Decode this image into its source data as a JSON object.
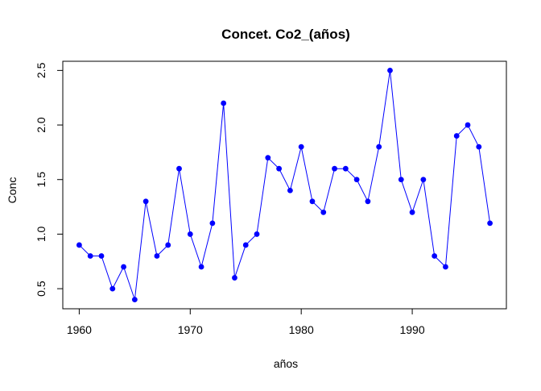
{
  "chart_data": {
    "type": "line",
    "title": "Concet. Co2_(años)",
    "xlabel": "años",
    "ylabel": "Conc",
    "x": [
      1960,
      1961,
      1962,
      1963,
      1964,
      1965,
      1966,
      1967,
      1968,
      1969,
      1970,
      1971,
      1972,
      1973,
      1974,
      1975,
      1976,
      1977,
      1978,
      1979,
      1980,
      1981,
      1982,
      1983,
      1984,
      1985,
      1986,
      1987,
      1988,
      1989,
      1990,
      1991,
      1992,
      1993,
      1994,
      1995,
      1996,
      1997
    ],
    "series": [
      {
        "values": [
          0.9,
          0.8,
          0.8,
          0.5,
          0.7,
          0.4,
          1.3,
          0.8,
          0.9,
          1.6,
          1.0,
          0.7,
          1.1,
          2.2,
          0.6,
          0.9,
          1.0,
          1.7,
          1.6,
          1.4,
          1.8,
          1.3,
          1.2,
          1.6,
          1.6,
          1.5,
          1.3,
          1.8,
          2.5,
          1.5,
          1.2,
          1.5,
          0.8,
          0.7,
          1.9,
          2.0,
          1.8,
          1.1
        ],
        "color": "#0000ff",
        "marker": "filled-circle"
      }
    ],
    "xticks": [
      1960,
      1970,
      1980,
      1990
    ],
    "xtick_labels": [
      "1960",
      "1970",
      "1980",
      "1990"
    ],
    "yticks": [
      0.5,
      1.0,
      1.5,
      2.0,
      2.5
    ],
    "ytick_labels": [
      "0.5",
      "1.0",
      "1.5",
      "2.0",
      "2.5"
    ],
    "xlim": [
      1958.52,
      1998.48
    ],
    "ylim": [
      0.316,
      2.584
    ],
    "grid": false,
    "legend": "none"
  }
}
